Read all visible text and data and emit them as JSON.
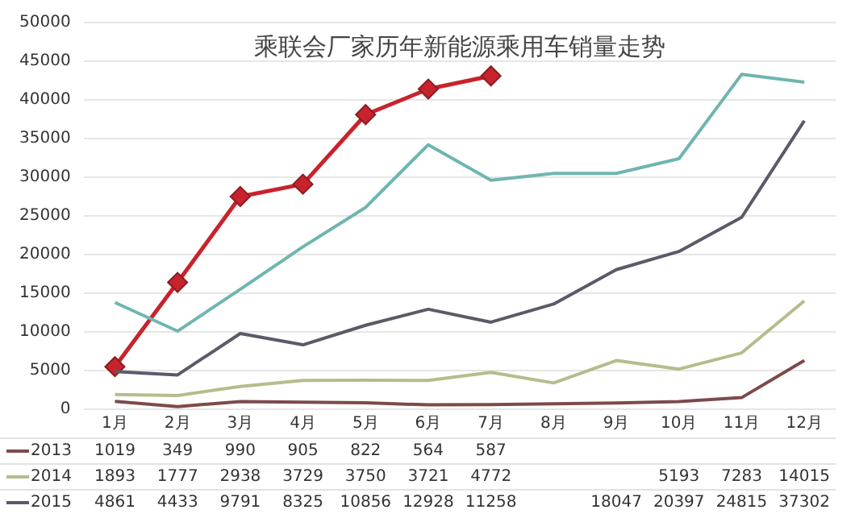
{
  "chart_data": {
    "type": "line",
    "title": "乘联会厂家历年新能源乘用车销量走势",
    "categories": [
      "1月",
      "2月",
      "3月",
      "4月",
      "5月",
      "6月",
      "7月",
      "8月",
      "9月",
      "10月",
      "11月",
      "12月"
    ],
    "ylim": [
      0,
      50000
    ],
    "yticks": [
      0,
      5000,
      10000,
      15000,
      20000,
      25000,
      30000,
      35000,
      40000,
      45000,
      50000
    ],
    "grid": "y",
    "legend": "bottom",
    "series": [
      {
        "name": "2013",
        "color": "#7d4a4a",
        "marker": "none",
        "values": [
          1019,
          349,
          990,
          905,
          822,
          564,
          587,
          700,
          800,
          1000,
          1500,
          6300
        ],
        "value_labels": [
          "1019",
          "349",
          "990",
          "905",
          "822",
          "564",
          "587",
          null,
          null,
          null,
          null,
          null
        ]
      },
      {
        "name": "2014",
        "color": "#b8bb8c",
        "marker": "none",
        "values": [
          1893,
          1777,
          2938,
          3729,
          3750,
          3721,
          4772,
          3400,
          6300,
          5193,
          7283,
          14015
        ],
        "value_labels": [
          "1893",
          "1777",
          "2938",
          "3729",
          "3750",
          "3721",
          "4772",
          null,
          null,
          "5193",
          "7283",
          "14015"
        ]
      },
      {
        "name": "2015",
        "color": "#5e5868",
        "marker": "none",
        "values": [
          4861,
          4433,
          9791,
          8325,
          10856,
          12928,
          11258,
          13600,
          18047,
          20397,
          24815,
          37302
        ],
        "value_labels": [
          "4861",
          "4433",
          "9791",
          "8325",
          "10856",
          "12928",
          "11258",
          null,
          "18047",
          "20397",
          "24815",
          "37302"
        ]
      },
      {
        "color": "#6fb5b1",
        "marker": "none",
        "values": [
          13800,
          10100,
          15500,
          21000,
          26100,
          34200,
          29600,
          30500,
          30500,
          32400,
          43300,
          42300
        ]
      },
      {
        "color": "#c8232c",
        "marker": "diamond",
        "values": [
          5500,
          16400,
          27500,
          29100,
          38100,
          41400,
          43100,
          null,
          null,
          null,
          null,
          null
        ]
      }
    ]
  }
}
